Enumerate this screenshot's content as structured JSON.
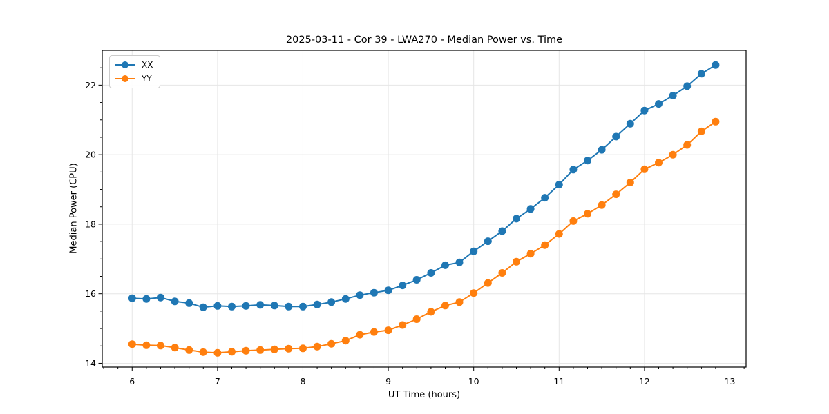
{
  "chart_data": {
    "type": "line",
    "title": "2025-03-11 - Cor 39 - LWA270 - Median Power vs. Time",
    "xlabel": "UT Time (hours)",
    "ylabel": "Median Power (CPU)",
    "xlim": [
      5.65,
      13.19
    ],
    "ylim": [
      13.89,
      23.0
    ],
    "grid": true,
    "grid_color": "#e6e6e6",
    "spine_color": "#000000",
    "tick_color": "#000000",
    "legend_position": "upper-left",
    "x_ticks": {
      "major": [
        6,
        7,
        8,
        9,
        10,
        11,
        12,
        13
      ],
      "labels": [
        "6",
        "7",
        "8",
        "9",
        "10",
        "11",
        "12",
        "13"
      ],
      "minor_step": 0.1666667
    },
    "y_ticks": {
      "major": [
        14,
        16,
        18,
        20,
        22
      ],
      "labels": [
        "14",
        "16",
        "18",
        "20",
        "22"
      ],
      "minor_step": 0.5
    },
    "x": [
      6.0,
      6.167,
      6.333,
      6.5,
      6.667,
      6.833,
      7.0,
      7.167,
      7.333,
      7.5,
      7.667,
      7.833,
      8.0,
      8.167,
      8.333,
      8.5,
      8.667,
      8.833,
      9.0,
      9.167,
      9.333,
      9.5,
      9.667,
      9.833,
      10.0,
      10.167,
      10.333,
      10.5,
      10.667,
      10.833,
      11.0,
      11.167,
      11.333,
      11.5,
      11.667,
      11.833,
      12.0,
      12.167,
      12.333,
      12.5,
      12.667,
      12.833
    ],
    "series": [
      {
        "name": "XX",
        "color": "#1f77b4",
        "values": [
          15.87,
          15.85,
          15.89,
          15.78,
          15.73,
          15.61,
          15.65,
          15.63,
          15.65,
          15.68,
          15.66,
          15.63,
          15.63,
          15.69,
          15.76,
          15.85,
          15.96,
          16.03,
          16.1,
          16.24,
          16.4,
          16.6,
          16.82,
          16.9,
          17.22,
          17.51,
          17.8,
          18.16,
          18.44,
          18.76,
          19.14,
          19.57,
          19.83,
          20.14,
          20.52,
          20.89,
          21.27,
          21.46,
          21.7,
          21.97,
          22.33,
          22.58
        ]
      },
      {
        "name": "YY",
        "color": "#ff7f0e",
        "values": [
          14.55,
          14.52,
          14.51,
          14.45,
          14.38,
          14.32,
          14.3,
          14.33,
          14.36,
          14.38,
          14.4,
          14.42,
          14.43,
          14.48,
          14.56,
          14.65,
          14.82,
          14.9,
          14.95,
          15.1,
          15.27,
          15.48,
          15.66,
          15.76,
          16.02,
          16.31,
          16.6,
          16.92,
          17.15,
          17.4,
          17.72,
          18.09,
          18.3,
          18.55,
          18.86,
          19.2,
          19.58,
          19.77,
          20.0,
          20.28,
          20.67,
          20.95
        ]
      }
    ]
  }
}
